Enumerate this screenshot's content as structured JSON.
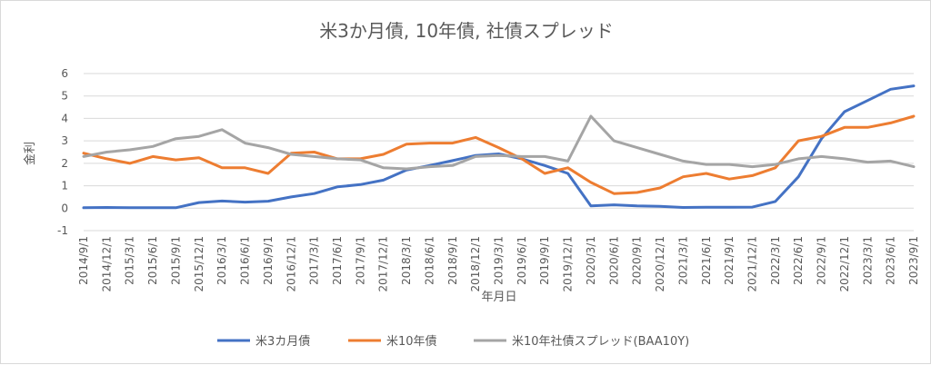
{
  "chart_data": {
    "type": "line",
    "title": "米3か月債, 10年債, 社債スプレッド",
    "xlabel": "年月日",
    "ylabel": "金利",
    "ylim": [
      -1,
      6
    ],
    "yticks": [
      "-1",
      "0",
      "1",
      "2",
      "3",
      "4",
      "5",
      "6"
    ],
    "grid": true,
    "legend_position": "bottom",
    "x_tick_labels": [
      "2014/9/1",
      "2014/12/1",
      "2015/3/1",
      "2015/6/1",
      "2015/9/1",
      "2015/12/1",
      "2016/3/1",
      "2016/6/1",
      "2016/9/1",
      "2016/12/1",
      "2017/3/1",
      "2017/6/1",
      "2017/9/1",
      "2017/12/1",
      "2018/3/1",
      "2018/6/1",
      "2018/9/1",
      "2018/12/1",
      "2019/3/1",
      "2019/6/1",
      "2019/9/1",
      "2019/12/1",
      "2020/3/1",
      "2020/6/1",
      "2020/9/1",
      "2020/12/1",
      "2021/3/1",
      "2021/6/1",
      "2021/9/1",
      "2021/12/1",
      "2022/3/1",
      "2022/6/1",
      "2022/9/1",
      "2022/12/1",
      "2023/3/1",
      "2023/6/1",
      "2023/9/1"
    ],
    "x": [
      "2014/9/1",
      "2014/12/1",
      "2015/3/1",
      "2015/6/1",
      "2015/9/1",
      "2015/12/1",
      "2016/3/1",
      "2016/6/1",
      "2016/9/1",
      "2016/12/1",
      "2017/3/1",
      "2017/6/1",
      "2017/9/1",
      "2017/12/1",
      "2018/3/1",
      "2018/6/1",
      "2018/9/1",
      "2018/12/1",
      "2019/3/1",
      "2019/6/1",
      "2019/9/1",
      "2019/12/1",
      "2020/3/1",
      "2020/6/1",
      "2020/9/1",
      "2020/12/1",
      "2021/3/1",
      "2021/6/1",
      "2021/9/1",
      "2021/12/1",
      "2022/3/1",
      "2022/6/1",
      "2022/9/1",
      "2022/12/1",
      "2023/3/1",
      "2023/6/1",
      "2023/9/1"
    ],
    "series": [
      {
        "name": "米3カ月債",
        "color": "#4472C4",
        "values": [
          0.02,
          0.03,
          0.02,
          0.02,
          0.02,
          0.25,
          0.32,
          0.27,
          0.31,
          0.5,
          0.65,
          0.95,
          1.05,
          1.25,
          1.7,
          1.9,
          2.12,
          2.35,
          2.42,
          2.2,
          1.9,
          1.55,
          0.1,
          0.15,
          0.1,
          0.08,
          0.03,
          0.04,
          0.04,
          0.05,
          0.3,
          1.4,
          3.1,
          4.3,
          4.8,
          5.3,
          5.45
        ]
      },
      {
        "name": "米10年債",
        "color": "#ED7D31",
        "values": [
          2.45,
          2.2,
          2.0,
          2.3,
          2.15,
          2.25,
          1.8,
          1.8,
          1.55,
          2.45,
          2.5,
          2.2,
          2.2,
          2.4,
          2.85,
          2.9,
          2.9,
          3.15,
          2.7,
          2.2,
          1.55,
          1.8,
          1.15,
          0.65,
          0.7,
          0.9,
          1.4,
          1.55,
          1.3,
          1.45,
          1.8,
          3.0,
          3.2,
          3.6,
          3.6,
          3.8,
          4.1
        ]
      },
      {
        "name": "米10年社債スプレッド(BAA10Y)",
        "color": "#A5A5A5",
        "values": [
          2.3,
          2.5,
          2.6,
          2.75,
          3.1,
          3.2,
          3.5,
          2.9,
          2.7,
          2.4,
          2.3,
          2.2,
          2.15,
          1.8,
          1.75,
          1.85,
          1.9,
          2.3,
          2.35,
          2.3,
          2.3,
          2.1,
          4.1,
          3.0,
          2.7,
          2.4,
          2.1,
          1.95,
          1.95,
          1.85,
          1.95,
          2.2,
          2.3,
          2.2,
          2.05,
          2.1,
          1.85
        ]
      }
    ]
  }
}
